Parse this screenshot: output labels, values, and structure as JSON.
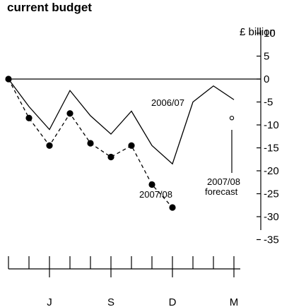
{
  "chart_data": {
    "type": "line",
    "title": "current budget",
    "unit_label": "£ billion",
    "ylim": [
      -35,
      10
    ],
    "yticks": [
      10,
      5,
      0,
      -5,
      -10,
      -15,
      -20,
      -25,
      -30,
      -35
    ],
    "ytick_labels": [
      "10",
      "5",
      "0",
      "-5",
      "-10",
      "-15",
      "-20",
      "-25",
      "-30",
      "-35"
    ],
    "x_tick_count": 12,
    "x_labels": [
      {
        "index": 2,
        "label": "J"
      },
      {
        "index": 5,
        "label": "S"
      },
      {
        "index": 8,
        "label": "D"
      },
      {
        "index": 11,
        "label": "M"
      }
    ],
    "grid": false,
    "series": [
      {
        "name": "2006/07",
        "style": "solid",
        "marker": "none",
        "values": [
          0,
          -6,
          -11,
          -2.5,
          -8,
          -12,
          -7,
          -14.5,
          -18.5,
          -5,
          -1.5,
          -4.5
        ]
      },
      {
        "name": "2007/08",
        "style": "dashed",
        "marker": "filled-circle",
        "values": [
          0,
          -8.5,
          -14.5,
          -7.5,
          -14,
          -17,
          -14.5,
          -23,
          -28
        ]
      }
    ],
    "forecast": {
      "label_line1": "2007/08",
      "label_line2": "forecast",
      "index": 11,
      "value": -8.5,
      "marker": "open-circle"
    },
    "annotations": [
      {
        "text": "2006/07",
        "series": "2006/07"
      },
      {
        "text": "2007/08",
        "series": "2007/08"
      }
    ]
  }
}
